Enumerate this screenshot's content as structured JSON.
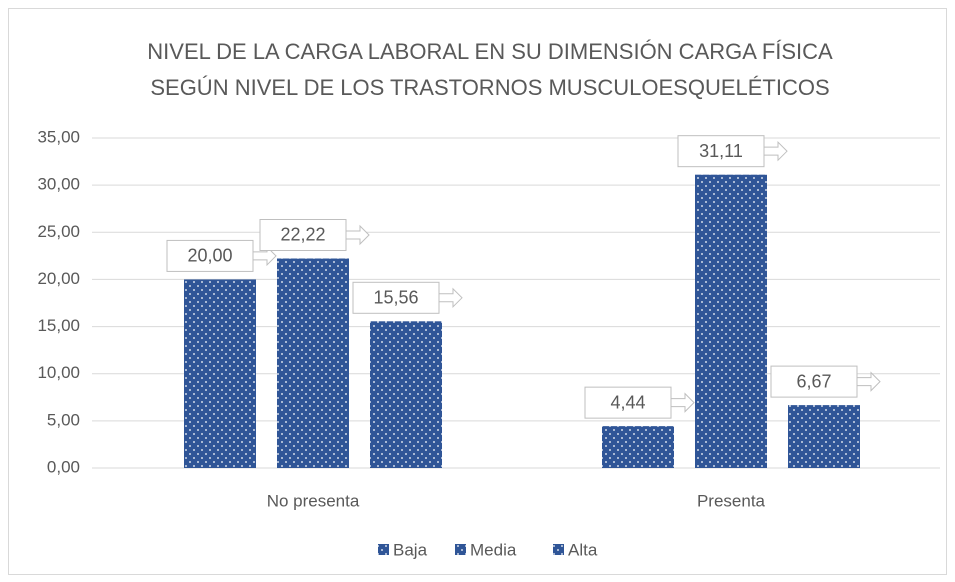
{
  "chart_data": {
    "type": "bar",
    "title": [
      "NIVEL DE LA CARGA LABORAL EN SU DIMENSIÓN CARGA FÍSICA",
      "SEGÚN NIVEL DE LOS TRASTORNOS MUSCULOESQUELÉTICOS"
    ],
    "categories": [
      "No presenta",
      "Presenta"
    ],
    "series": [
      {
        "name": "Baja",
        "color": "#2f5597",
        "values": [
          20,
          4.44
        ],
        "value_labels": [
          "20,00",
          "4,44"
        ]
      },
      {
        "name": "Media",
        "color": "#2f5597",
        "values": [
          22.22,
          31.11
        ],
        "value_labels": [
          "22,22",
          "31,11"
        ]
      },
      {
        "name": "Alta",
        "color": "#2f5597",
        "values": [
          15.56,
          6.67
        ],
        "value_labels": [
          "15,56",
          "6,67"
        ]
      }
    ],
    "ylim": [
      0,
      35
    ],
    "yticks": [
      {
        "value": 0,
        "label": "0,00"
      },
      {
        "value": 5,
        "label": "5,00"
      },
      {
        "value": 10,
        "label": "10,00"
      },
      {
        "value": 15,
        "label": "15,00"
      },
      {
        "value": 20,
        "label": "20,00"
      },
      {
        "value": 25,
        "label": "25,00"
      },
      {
        "value": 30,
        "label": "30,00"
      },
      {
        "value": 35,
        "label": "35,00"
      }
    ],
    "grid": true,
    "legend": "bottom"
  }
}
